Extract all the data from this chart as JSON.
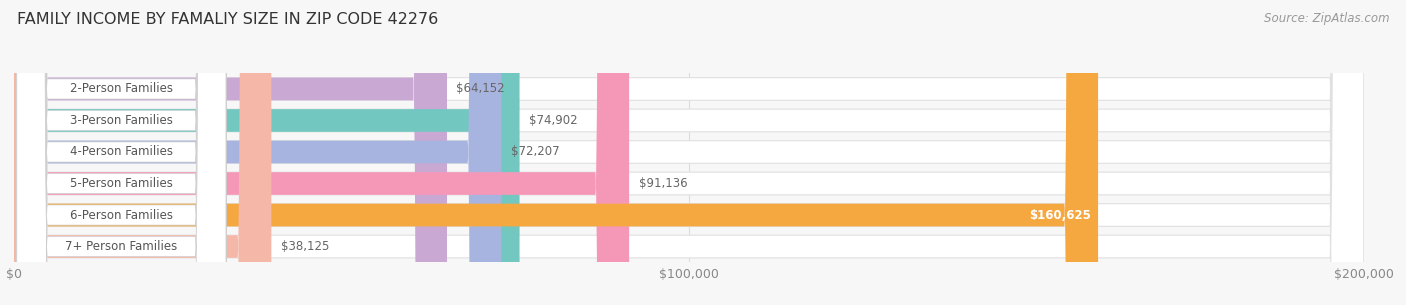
{
  "title": "FAMILY INCOME BY FAMALIY SIZE IN ZIP CODE 42276",
  "source": "Source: ZipAtlas.com",
  "categories": [
    "2-Person Families",
    "3-Person Families",
    "4-Person Families",
    "5-Person Families",
    "6-Person Families",
    "7+ Person Families"
  ],
  "values": [
    64152,
    74902,
    72207,
    91136,
    160625,
    38125
  ],
  "bar_colors": [
    "#c9a8d4",
    "#72c8c0",
    "#a8b4e0",
    "#f598b8",
    "#f5a840",
    "#f5b8a8"
  ],
  "value_labels": [
    "$64,152",
    "$74,902",
    "$72,207",
    "$91,136",
    "$160,625",
    "$38,125"
  ],
  "value_label_inside": [
    false,
    false,
    false,
    false,
    true,
    false
  ],
  "xlim_max": 200000,
  "xticks": [
    0,
    100000,
    200000
  ],
  "xtick_labels": [
    "$0",
    "$100,000",
    "$200,000"
  ],
  "bg_color": "#f7f7f7",
  "bar_bg_color": "#ffffff",
  "bar_border_color": "#e0e0e0",
  "title_fontsize": 11.5,
  "source_fontsize": 8.5,
  "label_fontsize": 8.5,
  "value_fontsize": 8.5
}
